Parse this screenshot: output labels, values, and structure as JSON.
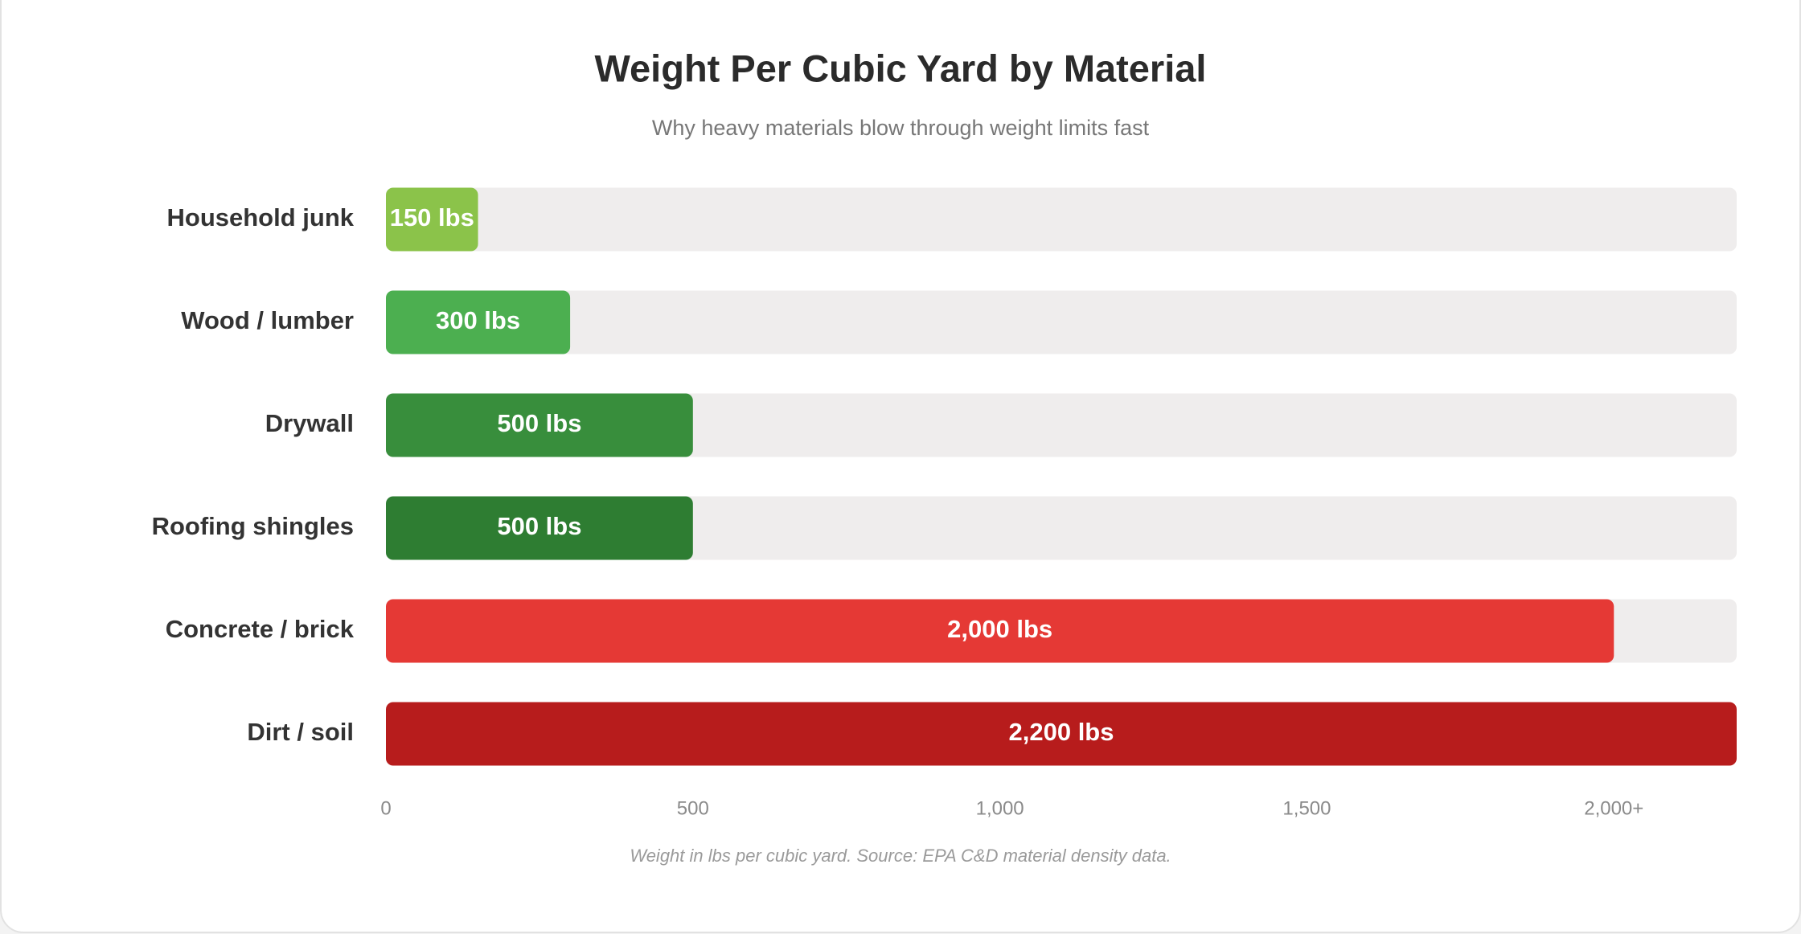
{
  "chart_data": {
    "type": "hbar",
    "title": "Weight Per Cubic Yard by Material",
    "subtitle": "Why heavy materials blow through weight limits fast",
    "categories": [
      "Household junk",
      "Wood / lumber",
      "Drywall",
      "Roofing shingles",
      "Concrete / brick",
      "Dirt / soil"
    ],
    "values": [
      150,
      300,
      500,
      500,
      2000,
      2200
    ],
    "value_labels": [
      "150 lbs",
      "300 lbs",
      "500 lbs",
      "500 lbs",
      "2,000 lbs",
      "2,200 lbs"
    ],
    "colors": [
      "#8bc34a",
      "#4caf50",
      "#388e3c",
      "#2e7d32",
      "#e53935",
      "#b71c1c"
    ],
    "xlim": [
      0,
      2200
    ],
    "xticks": [
      0,
      500,
      {
        "value": 1000,
        "label": "1,000"
      },
      {
        "value": 1500,
        "label": "1,500"
      },
      {
        "value": 2000,
        "label": "2,000+"
      }
    ],
    "grid": false,
    "note": "Weight in lbs per cubic yard. Source: EPA C&D material density data."
  }
}
